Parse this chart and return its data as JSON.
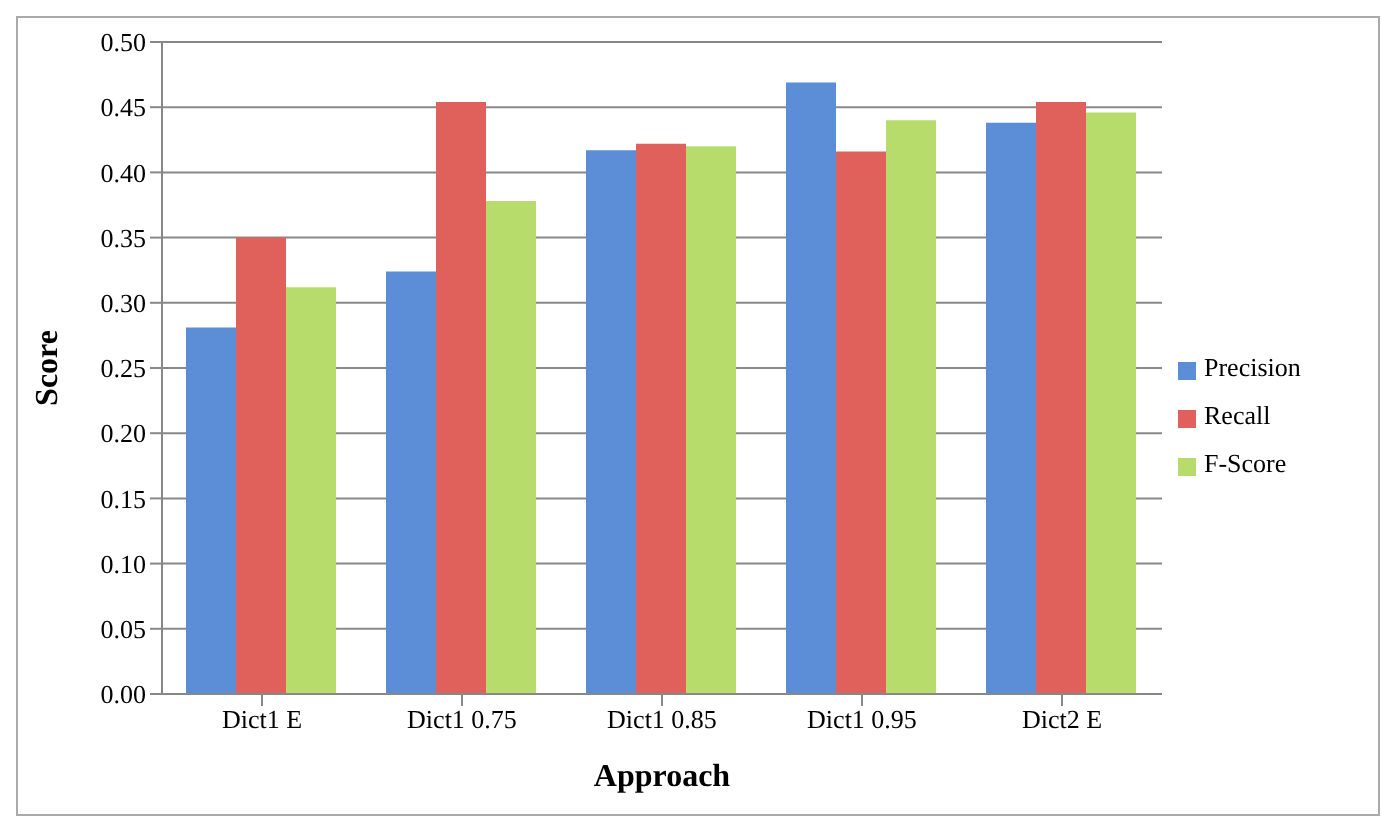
{
  "chart_data": {
    "type": "bar",
    "xlabel": "Approach",
    "ylabel": "Score",
    "categories": [
      "Dict1 E",
      "Dict1 0.75",
      "Dict1 0.85",
      "Dict1 0.95",
      "Dict2 E"
    ],
    "series": [
      {
        "name": "Precision",
        "color": "#5b8ed6",
        "values": [
          0.281,
          0.324,
          0.417,
          0.469,
          0.438
        ]
      },
      {
        "name": "Recall",
        "color": "#e0605c",
        "values": [
          0.35,
          0.454,
          0.422,
          0.416,
          0.454
        ]
      },
      {
        "name": "F-Score",
        "color": "#b8dc6c",
        "values": [
          0.312,
          0.378,
          0.42,
          0.44,
          0.446
        ]
      }
    ],
    "ylim": [
      0,
      0.5
    ],
    "yticks": [
      {
        "value": 0,
        "label": "0.00"
      },
      {
        "value": 0.05,
        "label": "0.05"
      },
      {
        "value": 0.1,
        "label": "0.10"
      },
      {
        "value": 0.15,
        "label": "0.15"
      },
      {
        "value": 0.2,
        "label": "0.20"
      },
      {
        "value": 0.25,
        "label": "0.25"
      },
      {
        "value": 0.3,
        "label": "0.30"
      },
      {
        "value": 0.35,
        "label": "0.35"
      },
      {
        "value": 0.4,
        "label": "0.40"
      },
      {
        "value": 0.45,
        "label": "0.45"
      },
      {
        "value": 0.5,
        "label": "0.50"
      }
    ],
    "grid": "y",
    "legend": "right"
  }
}
